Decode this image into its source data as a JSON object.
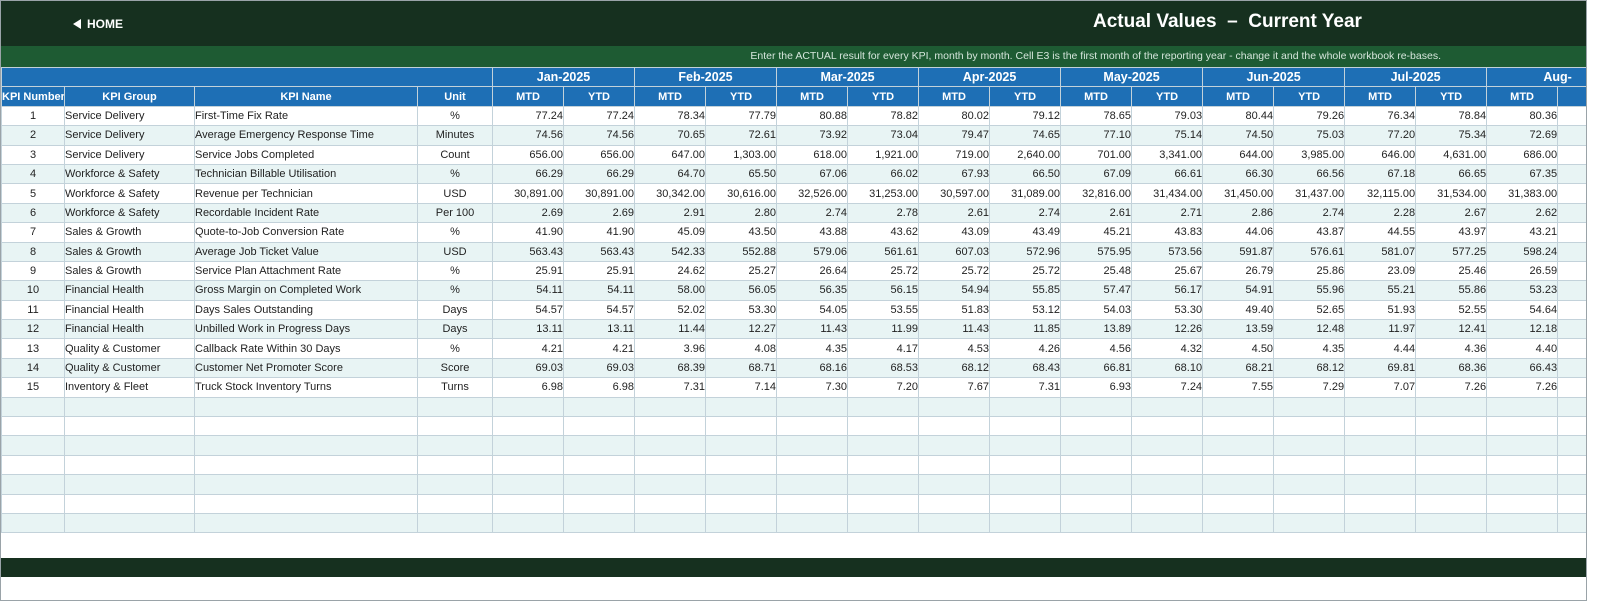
{
  "header": {
    "home_label": "HOME",
    "title": "Actual Values  –  Current Year",
    "instruction": "Enter the ACTUAL result for every KPI, month by month. Cell E3 is the first month of the reporting year - change it and the whole workbook re-bases."
  },
  "colors": {
    "dark_green": "#16301f",
    "mid_green": "#1e5b33",
    "header_blue": "#1e6fb5",
    "alt_row": "#e8f4f4"
  },
  "icons": {
    "home": "left-triangle-icon"
  },
  "table": {
    "columns": {
      "kpi_number": "KPI Number",
      "kpi_group": "KPI Group",
      "kpi_name": "KPI Name",
      "unit": "Unit",
      "mtd": "MTD",
      "ytd": "YTD"
    },
    "months": [
      "Jan-2025",
      "Feb-2025",
      "Mar-2025",
      "Apr-2025",
      "May-2025",
      "Jun-2025",
      "Jul-2025",
      "Aug-"
    ],
    "rows": [
      [
        "1",
        "Service Delivery",
        "First-Time Fix Rate",
        "%",
        "77.24",
        "77.24",
        "78.34",
        "77.79",
        "80.88",
        "78.82",
        "80.02",
        "79.12",
        "78.65",
        "79.03",
        "80.44",
        "79.26",
        "76.34",
        "78.84",
        "80.36"
      ],
      [
        "2",
        "Service Delivery",
        "Average Emergency Response Time",
        "Minutes",
        "74.56",
        "74.56",
        "70.65",
        "72.61",
        "73.92",
        "73.04",
        "79.47",
        "74.65",
        "77.10",
        "75.14",
        "74.50",
        "75.03",
        "77.20",
        "75.34",
        "72.69"
      ],
      [
        "3",
        "Service Delivery",
        "Service Jobs Completed",
        "Count",
        "656.00",
        "656.00",
        "647.00",
        "1,303.00",
        "618.00",
        "1,921.00",
        "719.00",
        "2,640.00",
        "701.00",
        "3,341.00",
        "644.00",
        "3,985.00",
        "646.00",
        "4,631.00",
        "686.00"
      ],
      [
        "4",
        "Workforce & Safety",
        "Technician Billable Utilisation",
        "%",
        "66.29",
        "66.29",
        "64.70",
        "65.50",
        "67.06",
        "66.02",
        "67.93",
        "66.50",
        "67.09",
        "66.61",
        "66.30",
        "66.56",
        "67.18",
        "66.65",
        "67.35"
      ],
      [
        "5",
        "Workforce & Safety",
        "Revenue per Technician",
        "USD",
        "30,891.00",
        "30,891.00",
        "30,342.00",
        "30,616.00",
        "32,526.00",
        "31,253.00",
        "30,597.00",
        "31,089.00",
        "32,816.00",
        "31,434.00",
        "31,450.00",
        "31,437.00",
        "32,115.00",
        "31,534.00",
        "31,383.00"
      ],
      [
        "6",
        "Workforce & Safety",
        "Recordable Incident Rate",
        "Per 100",
        "2.69",
        "2.69",
        "2.91",
        "2.80",
        "2.74",
        "2.78",
        "2.61",
        "2.74",
        "2.61",
        "2.71",
        "2.86",
        "2.74",
        "2.28",
        "2.67",
        "2.62"
      ],
      [
        "7",
        "Sales & Growth",
        "Quote-to-Job Conversion Rate",
        "%",
        "41.90",
        "41.90",
        "45.09",
        "43.50",
        "43.88",
        "43.62",
        "43.09",
        "43.49",
        "45.21",
        "43.83",
        "44.06",
        "43.87",
        "44.55",
        "43.97",
        "43.21"
      ],
      [
        "8",
        "Sales & Growth",
        "Average Job Ticket Value",
        "USD",
        "563.43",
        "563.43",
        "542.33",
        "552.88",
        "579.06",
        "561.61",
        "607.03",
        "572.96",
        "575.95",
        "573.56",
        "591.87",
        "576.61",
        "581.07",
        "577.25",
        "598.24"
      ],
      [
        "9",
        "Sales & Growth",
        "Service Plan Attachment Rate",
        "%",
        "25.91",
        "25.91",
        "24.62",
        "25.27",
        "26.64",
        "25.72",
        "25.72",
        "25.72",
        "25.48",
        "25.67",
        "26.79",
        "25.86",
        "23.09",
        "25.46",
        "26.59"
      ],
      [
        "10",
        "Financial Health",
        "Gross Margin on Completed Work",
        "%",
        "54.11",
        "54.11",
        "58.00",
        "56.05",
        "56.35",
        "56.15",
        "54.94",
        "55.85",
        "57.47",
        "56.17",
        "54.91",
        "55.96",
        "55.21",
        "55.86",
        "53.23"
      ],
      [
        "11",
        "Financial Health",
        "Days Sales Outstanding",
        "Days",
        "54.57",
        "54.57",
        "52.02",
        "53.30",
        "54.05",
        "53.55",
        "51.83",
        "53.12",
        "54.03",
        "53.30",
        "49.40",
        "52.65",
        "51.93",
        "52.55",
        "54.64"
      ],
      [
        "12",
        "Financial Health",
        "Unbilled Work in Progress Days",
        "Days",
        "13.11",
        "13.11",
        "11.44",
        "12.27",
        "11.43",
        "11.99",
        "11.43",
        "11.85",
        "13.89",
        "12.26",
        "13.59",
        "12.48",
        "11.97",
        "12.41",
        "12.18"
      ],
      [
        "13",
        "Quality & Customer",
        "Callback Rate Within 30 Days",
        "%",
        "4.21",
        "4.21",
        "3.96",
        "4.08",
        "4.35",
        "4.17",
        "4.53",
        "4.26",
        "4.56",
        "4.32",
        "4.50",
        "4.35",
        "4.44",
        "4.36",
        "4.40"
      ],
      [
        "14",
        "Quality & Customer",
        "Customer Net Promoter Score",
        "Score",
        "69.03",
        "69.03",
        "68.39",
        "68.71",
        "68.16",
        "68.53",
        "68.12",
        "68.43",
        "66.81",
        "68.10",
        "68.21",
        "68.12",
        "69.81",
        "68.36",
        "66.43"
      ],
      [
        "15",
        "Inventory & Fleet",
        "Truck Stock Inventory Turns",
        "Turns",
        "6.98",
        "6.98",
        "7.31",
        "7.14",
        "7.30",
        "7.20",
        "7.67",
        "7.31",
        "6.93",
        "7.24",
        "7.55",
        "7.29",
        "7.07",
        "7.26",
        "7.26"
      ]
    ],
    "empty_rows": 7
  }
}
